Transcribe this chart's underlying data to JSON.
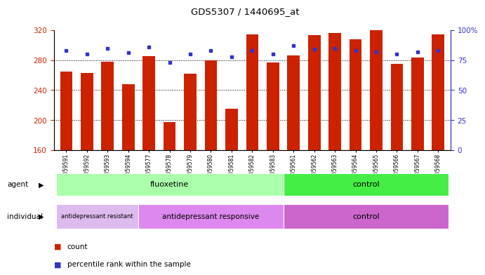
{
  "title": "GDS5307 / 1440695_at",
  "samples": [
    "GSM1059591",
    "GSM1059592",
    "GSM1059593",
    "GSM1059594",
    "GSM1059577",
    "GSM1059578",
    "GSM1059579",
    "GSM1059580",
    "GSM1059581",
    "GSM1059582",
    "GSM1059583",
    "GSM1059561",
    "GSM1059562",
    "GSM1059563",
    "GSM1059564",
    "GSM1059565",
    "GSM1059566",
    "GSM1059567",
    "GSM1059568"
  ],
  "bar_values": [
    265,
    263,
    278,
    248,
    285,
    197,
    262,
    280,
    215,
    314,
    277,
    286,
    313,
    316,
    308,
    321,
    275,
    283,
    314
  ],
  "percentile_values": [
    83,
    80,
    85,
    81,
    86,
    73,
    80,
    83,
    78,
    83,
    80,
    87,
    84,
    85,
    83,
    82,
    80,
    82,
    83
  ],
  "bar_color": "#cc2200",
  "percentile_color": "#3333cc",
  "ylim_left": [
    160,
    320
  ],
  "ylim_right": [
    0,
    100
  ],
  "yticks_left": [
    160,
    200,
    240,
    280,
    320
  ],
  "yticks_right": [
    0,
    25,
    50,
    75,
    100
  ],
  "ytick_labels_right": [
    "0",
    "25",
    "50",
    "75",
    "100%"
  ],
  "hlines": [
    200,
    240,
    280
  ],
  "agent_fluoxetine_color": "#aaffaa",
  "agent_control_color": "#44ee44",
  "individual_resistant_color": "#ddbbee",
  "individual_responsive_color": "#dd88ee",
  "individual_control_color": "#cc66cc",
  "bg_color": "#d8d8d8",
  "plot_bg_color": "#ffffff",
  "agent_groups": [
    {
      "label": "fluoxetine",
      "start": 0,
      "end": 11
    },
    {
      "label": "control",
      "start": 11,
      "end": 19
    }
  ],
  "individual_groups": [
    {
      "label": "antidepressant resistant",
      "start": 0,
      "end": 4
    },
    {
      "label": "antidepressant responsive",
      "start": 4,
      "end": 11
    },
    {
      "label": "control",
      "start": 11,
      "end": 19
    }
  ]
}
